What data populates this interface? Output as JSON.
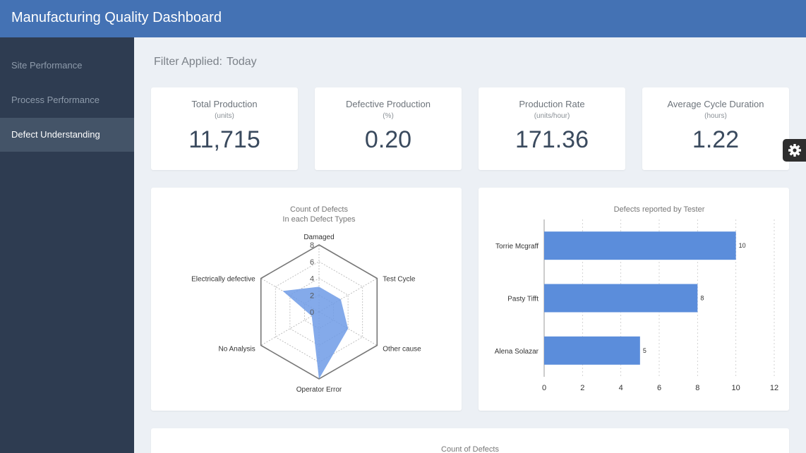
{
  "app": {
    "title": "Manufacturing Quality Dashboard"
  },
  "sidebar": {
    "items": [
      {
        "label": "Site Performance"
      },
      {
        "label": "Process Performance"
      },
      {
        "label": "Defect Understanding"
      }
    ]
  },
  "filter": {
    "label": "Filter Applied:",
    "value": "Today"
  },
  "kpis": [
    {
      "label": "Total Production",
      "unit": "(units)",
      "value": "11,715"
    },
    {
      "label": "Defective Production",
      "unit": "(%)",
      "value": "0.20"
    },
    {
      "label": "Production Rate",
      "unit": "(units/hour)",
      "value": "171.36"
    },
    {
      "label": "Average Cycle Duration",
      "unit": "(hours)",
      "value": "1.22"
    }
  ],
  "colors": {
    "header": "#4472b4",
    "sidebar": "#2e3c51",
    "sidebar_active": "#445468",
    "bar": "#5b8ddb",
    "radar_fill": "#6e9be6"
  },
  "icons": {
    "settings": "gear-icon"
  },
  "bottom": {
    "title": "Count of Defects"
  },
  "chart_data": [
    {
      "type": "radar",
      "title": "Count of Defects",
      "subtitle": "In each Defect Types",
      "categories": [
        "Damaged",
        "Test Cycle",
        "Other cause",
        "Operator Error",
        "No Analysis",
        "Electrically defective"
      ],
      "values": [
        3,
        3,
        4,
        8,
        1,
        5
      ],
      "rlim": [
        0,
        8
      ],
      "ticks": [
        "0",
        "2",
        "4",
        "6",
        "8"
      ]
    },
    {
      "type": "bar",
      "orientation": "horizontal",
      "title": "Defects reported by Tester",
      "categories": [
        "Torrie Mcgraff",
        "Pasty Tifft",
        "Alena Solazar"
      ],
      "values": [
        10,
        8,
        5
      ],
      "xlim": [
        0,
        12
      ],
      "ticks": [
        "0",
        "2",
        "4",
        "6",
        "8",
        "10",
        "12"
      ],
      "grid": true
    }
  ]
}
